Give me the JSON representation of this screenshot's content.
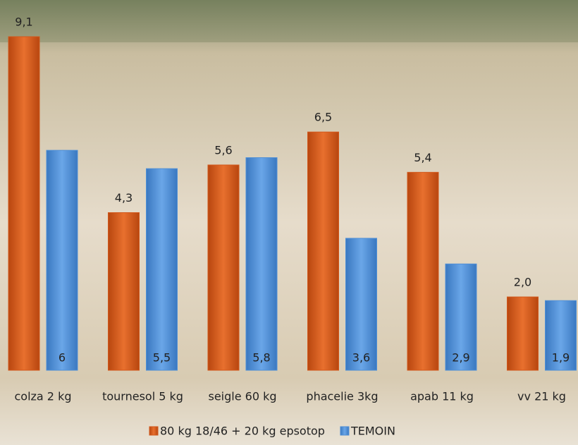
{
  "chart_data": {
    "type": "bar",
    "categories": [
      "colza 2 kg",
      "tournesol 5 kg",
      "seigle 60 kg",
      "phacelie 3kg",
      "apab 11 kg",
      "vv 21 kg"
    ],
    "series": [
      {
        "name": "80 kg 18/46 + 20 kg epsotop",
        "color": "#d2581c",
        "values": [
          9.1,
          4.3,
          5.6,
          6.5,
          5.4,
          2.0
        ],
        "value_labels": [
          "9,1",
          "4,3",
          "5,6",
          "6,5",
          "5,4",
          "2,0"
        ]
      },
      {
        "name": "TEMOIN",
        "color": "#4f8fd6",
        "values": [
          6,
          5.5,
          5.8,
          3.6,
          2.9,
          1.9
        ],
        "value_labels": [
          "6",
          "5,5",
          "5,8",
          "3,6",
          "2,9",
          "1,9"
        ]
      }
    ],
    "ylim": [
      0,
      10
    ],
    "legend": "bottom"
  }
}
